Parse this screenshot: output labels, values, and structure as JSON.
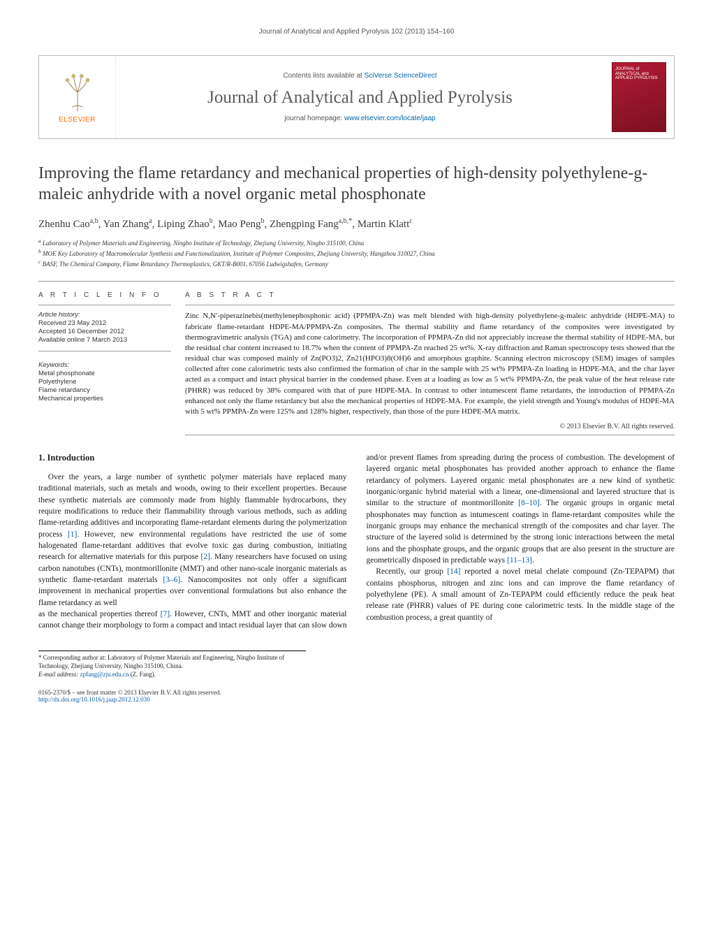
{
  "running_header": "Journal of Analytical and Applied Pyrolysis 102 (2013) 154–160",
  "masthead": {
    "publisher_word": "ELSEVIER",
    "contents_prefix": "Contents lists available at ",
    "contents_link_text": "SciVerse ScienceDirect",
    "journal_name": "Journal of Analytical and Applied Pyrolysis",
    "homepage_prefix": "journal homepage: ",
    "homepage_link_text": "www.elsevier.com/locate/jaap",
    "cover_text": "JOURNAL of ANALYTICAL and APPLIED PYROLYSIS"
  },
  "title": "Improving the flame retardancy and mechanical properties of high-density polyethylene-g-maleic anhydride with a novel organic metal phosphonate",
  "authors_html": "Zhenhu Cao<sup>a,b</sup>, Yan Zhang<sup>a</sup>, Liping Zhao<sup>b</sup>, Mao Peng<sup>b</sup>, Zhengping Fang<sup>a,b,</sup><sup class='corr'>*</sup>, Martin Klatt<sup>c</sup>",
  "affiliations": [
    "a Laboratory of Polymer Materials and Engineering, Ningbo Institute of Technology, Zhejiang University, Ningbo 315100, China",
    "b MOE Key Laboratory of Macromolecular Synthesis and Functionalization, Institute of Polymer Composites, Zhejiang University, Hangzhou 310027, China",
    "c BASF, The Chemical Company, Flame Retardancy Thermoplastics, GKT/R-B001, 67056 Ludwigshafen, Germany"
  ],
  "info_head": "A R T I C L E   I N F O",
  "abstract_head": "A B S T R A C T",
  "history": {
    "head": "Article history:",
    "received": "Received 23 May 2012",
    "accepted": "Accepted 16 December 2012",
    "online": "Available online 7 March 2013"
  },
  "keywords_head": "Keywords:",
  "keywords": [
    "Metal phosphonate",
    "Polyethylene",
    "Flame retardancy",
    "Mechanical properties"
  ],
  "abstract": "Zinc N,N′-piperazinebis(methylenephosphonic acid) (PPMPA-Zn) was melt blended with high-density polyethylene-g-maleic anhydride (HDPE-MA) to fabricate flame-retardant HDPE-MA/PPMPA-Zn composites. The thermal stability and flame retardancy of the composites were investigated by thermogravimetric analysis (TGA) and cone calorimetry. The incorporation of PPMPA-Zn did not appreciably increase the thermal stability of HDPE-MA, but the residual char content increased to 18.7% when the content of PPMPA-Zn reached 25 wt%. X-ray diffraction and Raman spectroscopy tests showed that the residual char was composed mainly of Zn(PO3)2, Zn21(HPO3)8(OH)6 and amorphous graphite. Scanning electron microscopy (SEM) images of samples collected after cone calorimetric tests also confirmed the formation of char in the sample with 25 wt% PPMPA-Zn loading in HDPE-MA, and the char layer acted as a compact and intact physical barrier in the condensed phase. Even at a loading as low as 5 wt% PPMPA-Zn, the peak value of the heat release rate (PHRR) was reduced by 38% compared with that of pure HDPE-MA. In contrast to other intumescent flame retardants, the introduction of PPMPA-Zn enhanced not only the flame retardancy but also the mechanical properties of HDPE-MA. For example, the yield strength and Young's modulus of HDPE-MA with 5 wt% PPMPA-Zn were 125% and 128% higher, respectively, than those of the pure HDPE-MA matrix.",
  "copyright": "© 2013 Elsevier B.V. All rights reserved.",
  "section1_head": "1. Introduction",
  "body_para1": "Over the years, a large number of synthetic polymer materials have replaced many traditional materials, such as metals and woods, owing to their excellent properties. Because these synthetic materials are commonly made from highly flammable hydrocarbons, they require modifications to reduce their flammability through various methods, such as adding flame-retarding additives and incorporating flame-retardant elements during the polymerization process [1]. However, new environmental regulations have restricted the use of some halogenated flame-retardant additives that evolve toxic gas during combustion, initiating research for alternative materials for this purpose [2]. Many researchers have focused on using carbon nanotubes (CNTs), montmorillonite (MMT) and other nano-scale inorganic materials as synthetic flame-retardant materials [3–6]. Nanocomposites not only offer a significant improvement in mechanical properties over conventional formulations but also enhance the flame retardancy as well",
  "body_para2": "as the mechanical properties thereof [7]. However, CNTs, MMT and other inorganic material cannot change their morphology to form a compact and intact residual layer that can slow down and/or prevent flames from spreading during the process of combustion. The development of layered organic metal phosphonates has provided another approach to enhance the flame retardancy of polymers. Layered organic metal phosphonates are a new kind of synthetic inorganic/organic hybrid material with a linear, one-dimensional and layered structure that is similar to the structure of montmorillonite [8–10]. The organic groups in organic metal phosphonates may function as intumescent coatings in flame-retardant composites while the inorganic groups may enhance the mechanical strength of the composites and char layer. The structure of the layered solid is determined by the strong ionic interactions between the metal ions and the phosphate groups, and the organic groups that are also present in the structure are geometrically disposed in predictable ways [11–13].",
  "body_para3": "Recently, our group [14] reported a novel metal chelate compound (Zn-TEPAPM) that contains phosphorus, nitrogen and zinc ions and can improve the flame retardancy of polyethylene (PE). A small amount of Zn-TEPAPM could efficiently reduce the peak heat release rate (PHRR) values of PE during cone calorimetric tests. In the middle stage of the combustion process, a great quantity of",
  "footnote": {
    "corr": "* Corresponding author at: Laboratory of Polymer Materials and Engineering, Ningbo Institute of Technology, Zhejiang University, Ningbo 315100, China.",
    "email_label": "E-mail address: ",
    "email": "zpfang@zju.edu.cn",
    "email_trail": " (Z. Fang)."
  },
  "footer": {
    "issn_line": "0165-2370/$ – see front matter © 2013 Elsevier B.V. All rights reserved.",
    "doi": "http://dx.doi.org/10.1016/j.jaap.2012.12.030"
  },
  "refs": {
    "r1": "[1]",
    "r2": "[2]",
    "r3_6": "[3–6]",
    "r7": "[7]",
    "r8_10": "[8–10]",
    "r11_13": "[11–13]",
    "r14": "[14]"
  },
  "colors": {
    "link": "#0b5aa6",
    "elsevier_orange": "#ff6900",
    "cover_red_a": "#b31b34",
    "cover_red_b": "#7a1022"
  }
}
